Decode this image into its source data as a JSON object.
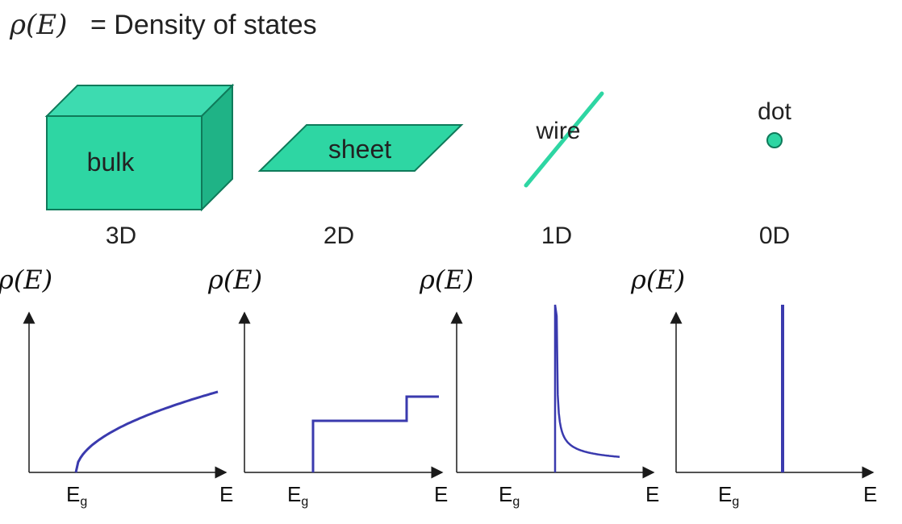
{
  "header": {
    "symbol": "ρ(E)",
    "text": "= Density of states"
  },
  "colors": {
    "shape_fill": "#2ed6a3",
    "shape_dark": "#1aa67c",
    "shape_stroke": "#0f7a5a",
    "curve": "#3a3aae",
    "axis": "#1a1a1a",
    "text": "#222222"
  },
  "shapes": [
    {
      "id": "bulk",
      "label": "bulk",
      "dimension": "3D"
    },
    {
      "id": "sheet",
      "label": "sheet",
      "dimension": "2D"
    },
    {
      "id": "wire",
      "label": "wire",
      "dimension": "1D"
    },
    {
      "id": "dot",
      "label": "dot",
      "dimension": "0D"
    }
  ],
  "plots": [
    {
      "id": "3d",
      "ylabel": "ρ(E)",
      "xlabel": "E",
      "gap_label": "Eg",
      "gap_main": "E",
      "gap_sub": "g",
      "shape": "sqrt"
    },
    {
      "id": "2d",
      "ylabel": "ρ(E)",
      "xlabel": "E",
      "gap_label": "Eg",
      "gap_main": "E",
      "gap_sub": "g",
      "shape": "step"
    },
    {
      "id": "1d",
      "ylabel": "ρ(E)",
      "xlabel": "E",
      "gap_label": "Eg",
      "gap_main": "E",
      "gap_sub": "g",
      "shape": "inverse-sqrt"
    },
    {
      "id": "0d",
      "ylabel": "ρ(E)",
      "xlabel": "E",
      "gap_label": "Eg",
      "gap_main": "E",
      "gap_sub": "g",
      "shape": "delta"
    }
  ]
}
